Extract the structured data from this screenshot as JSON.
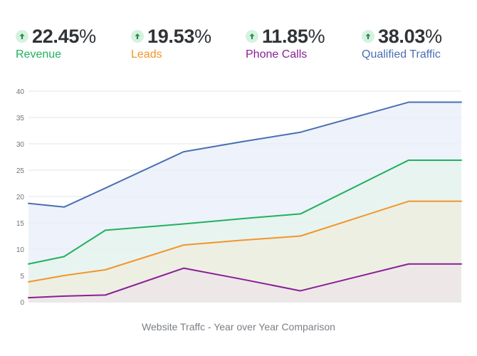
{
  "kpis": [
    {
      "value_number": "22.45",
      "value_unit": "%",
      "label": "Revenue",
      "color": "#20b15f",
      "trend_icon": "arrow-up-icon"
    },
    {
      "value_number": "19.53",
      "value_unit": "%",
      "label": "Leads",
      "color": "#f2952a",
      "trend_icon": "arrow-up-icon"
    },
    {
      "value_number": "11.85",
      "value_unit": "%",
      "label": "Phone Calls",
      "color": "#8a1f96",
      "trend_icon": "arrow-up-icon"
    },
    {
      "value_number": "38.03",
      "value_unit": "%",
      "label": "Qualified Traffic",
      "color": "#4a6fb3",
      "trend_icon": "arrow-up-icon"
    }
  ],
  "chart_data": {
    "type": "area",
    "title": "Website Traffc - Year over Year Comparison",
    "xlabel": "",
    "ylabel": "",
    "ylim": [
      0,
      40
    ],
    "yticks": [
      "0",
      "5",
      "10",
      "15",
      "20",
      "25",
      "30",
      "35",
      "40"
    ],
    "grid": true,
    "x": [
      0,
      1,
      2,
      3,
      4,
      5,
      6,
      7
    ],
    "series": [
      {
        "name": "Qualified Traffic",
        "color": "#4a6fb3",
        "fill": "#e8edf8",
        "values": [
          18.7,
          18.0,
          21.6,
          28.5,
          30.4,
          32.2,
          37.9,
          37.9
        ]
      },
      {
        "name": "Revenue",
        "color": "#20b15f",
        "fill": "#e5f4ec",
        "values": [
          7.2,
          8.6,
          13.6,
          14.8,
          15.8,
          16.7,
          26.9,
          26.9
        ]
      },
      {
        "name": "Leads",
        "color": "#f2952a",
        "fill": "#efeedf",
        "values": [
          3.8,
          5.0,
          6.1,
          10.8,
          11.7,
          12.5,
          19.1,
          19.1
        ]
      },
      {
        "name": "Phone Calls",
        "color": "#8a1f96",
        "fill": "#ece4ea",
        "values": [
          0.8,
          1.1,
          1.3,
          6.4,
          4.3,
          2.1,
          7.2,
          7.2
        ]
      }
    ]
  }
}
